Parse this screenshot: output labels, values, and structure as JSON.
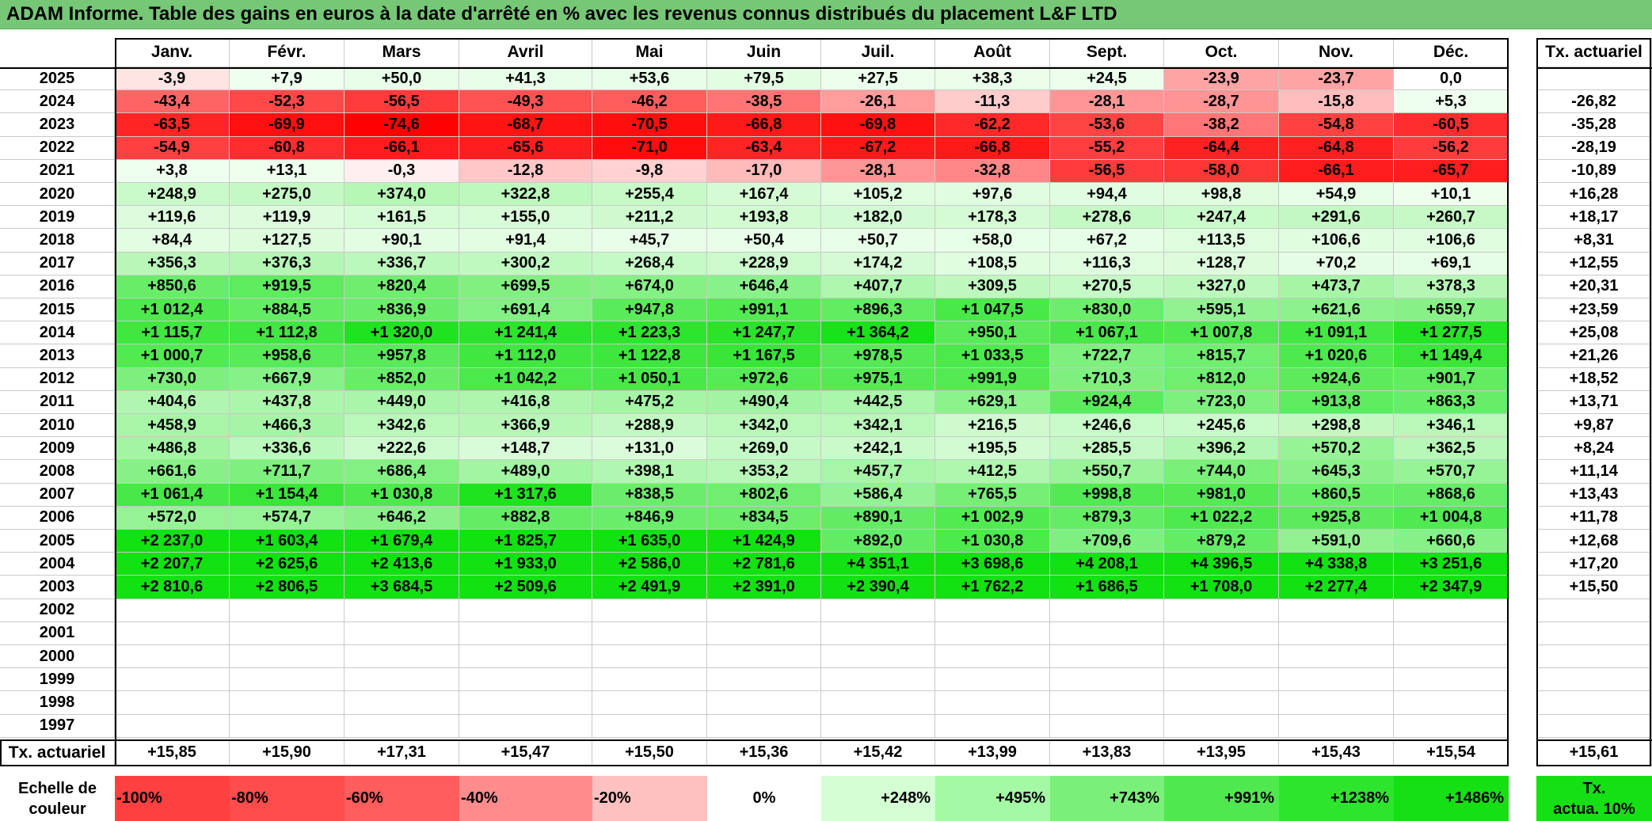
{
  "title": "ADAM Informe. Table des gains en euros à la date d'arrêté en % avec les revenus connus distribués du placement L&F LTD",
  "months": [
    "Janv.",
    "Févr.",
    "Mars",
    "Avril",
    "Mai",
    "Juin",
    "Juil.",
    "Août",
    "Sept.",
    "Oct.",
    "Nov.",
    "Déc."
  ],
  "annual_header": "Tx. actuariel",
  "rows": [
    {
      "year": "2025",
      "values": [
        "-3,9",
        "+7,9",
        "+50,0",
        "+41,3",
        "+53,6",
        "+79,5",
        "+27,5",
        "+38,3",
        "+24,5",
        "-23,9",
        "-23,7",
        "0,0"
      ],
      "annual": ""
    },
    {
      "year": "2024",
      "values": [
        "-43,4",
        "-52,3",
        "-56,5",
        "-49,3",
        "-46,2",
        "-38,5",
        "-26,1",
        "-11,3",
        "-28,1",
        "-28,7",
        "-15,8",
        "+5,3"
      ],
      "annual": "-26,82"
    },
    {
      "year": "2023",
      "values": [
        "-63,5",
        "-69,9",
        "-74,6",
        "-68,7",
        "-70,5",
        "-66,8",
        "-69,8",
        "-62,2",
        "-53,6",
        "-38,2",
        "-54,8",
        "-60,5"
      ],
      "annual": "-35,28"
    },
    {
      "year": "2022",
      "values": [
        "-54,9",
        "-60,8",
        "-66,1",
        "-65,6",
        "-71,0",
        "-63,4",
        "-67,2",
        "-66,8",
        "-55,2",
        "-64,4",
        "-64,8",
        "-56,2"
      ],
      "annual": "-28,19"
    },
    {
      "year": "2021",
      "values": [
        "+3,8",
        "+13,1",
        "-0,3",
        "-12,8",
        "-9,8",
        "-17,0",
        "-28,1",
        "-32,8",
        "-56,5",
        "-58,0",
        "-66,1",
        "-65,7"
      ],
      "annual": "-10,89"
    },
    {
      "year": "2020",
      "values": [
        "+248,9",
        "+275,0",
        "+374,0",
        "+322,8",
        "+255,4",
        "+167,4",
        "+105,2",
        "+97,6",
        "+94,4",
        "+98,8",
        "+54,9",
        "+10,1"
      ],
      "annual": "+16,28"
    },
    {
      "year": "2019",
      "values": [
        "+119,6",
        "+119,9",
        "+161,5",
        "+155,0",
        "+211,2",
        "+193,8",
        "+182,0",
        "+178,3",
        "+278,6",
        "+247,4",
        "+291,6",
        "+260,7"
      ],
      "annual": "+18,17"
    },
    {
      "year": "2018",
      "values": [
        "+84,4",
        "+127,5",
        "+90,1",
        "+91,4",
        "+45,7",
        "+50,4",
        "+50,7",
        "+58,0",
        "+67,2",
        "+113,5",
        "+106,6",
        "+106,6"
      ],
      "annual": "+8,31"
    },
    {
      "year": "2017",
      "values": [
        "+356,3",
        "+376,3",
        "+336,7",
        "+300,2",
        "+268,4",
        "+228,9",
        "+174,2",
        "+108,5",
        "+116,3",
        "+128,7",
        "+70,2",
        "+69,1"
      ],
      "annual": "+12,55"
    },
    {
      "year": "2016",
      "values": [
        "+850,6",
        "+919,5",
        "+820,4",
        "+699,5",
        "+674,0",
        "+646,4",
        "+407,7",
        "+309,5",
        "+270,5",
        "+327,0",
        "+473,7",
        "+378,3"
      ],
      "annual": "+20,31"
    },
    {
      "year": "2015",
      "values": [
        "+1 012,4",
        "+884,5",
        "+836,9",
        "+691,4",
        "+947,8",
        "+991,1",
        "+896,3",
        "+1 047,5",
        "+830,0",
        "+595,1",
        "+621,6",
        "+659,7"
      ],
      "annual": "+23,59"
    },
    {
      "year": "2014",
      "values": [
        "+1 115,7",
        "+1 112,8",
        "+1 320,0",
        "+1 241,4",
        "+1 223,3",
        "+1 247,7",
        "+1 364,2",
        "+950,1",
        "+1 067,1",
        "+1 007,8",
        "+1 091,1",
        "+1 277,5"
      ],
      "annual": "+25,08"
    },
    {
      "year": "2013",
      "values": [
        "+1 000,7",
        "+958,6",
        "+957,8",
        "+1 112,0",
        "+1 122,8",
        "+1 167,5",
        "+978,5",
        "+1 033,5",
        "+722,7",
        "+815,7",
        "+1 020,6",
        "+1 149,4"
      ],
      "annual": "+21,26"
    },
    {
      "year": "2012",
      "values": [
        "+730,0",
        "+667,9",
        "+852,0",
        "+1 042,2",
        "+1 050,1",
        "+972,6",
        "+975,1",
        "+991,9",
        "+710,3",
        "+812,0",
        "+924,6",
        "+901,7"
      ],
      "annual": "+18,52"
    },
    {
      "year": "2011",
      "values": [
        "+404,6",
        "+437,8",
        "+449,0",
        "+416,8",
        "+475,2",
        "+490,4",
        "+442,5",
        "+629,1",
        "+924,4",
        "+723,0",
        "+913,8",
        "+863,3"
      ],
      "annual": "+13,71"
    },
    {
      "year": "2010",
      "values": [
        "+458,9",
        "+466,3",
        "+342,6",
        "+366,9",
        "+288,9",
        "+342,0",
        "+342,1",
        "+216,5",
        "+246,6",
        "+245,6",
        "+298,8",
        "+346,1"
      ],
      "annual": "+9,87"
    },
    {
      "year": "2009",
      "values": [
        "+486,8",
        "+336,6",
        "+222,6",
        "+148,7",
        "+131,0",
        "+269,0",
        "+242,1",
        "+195,5",
        "+285,5",
        "+396,2",
        "+570,2",
        "+362,5"
      ],
      "annual": "+8,24"
    },
    {
      "year": "2008",
      "values": [
        "+661,6",
        "+711,7",
        "+686,4",
        "+489,0",
        "+398,1",
        "+353,2",
        "+457,7",
        "+412,5",
        "+550,7",
        "+744,0",
        "+645,3",
        "+570,7"
      ],
      "annual": "+11,14"
    },
    {
      "year": "2007",
      "values": [
        "+1 061,4",
        "+1 154,4",
        "+1 030,8",
        "+1 317,6",
        "+838,5",
        "+802,6",
        "+586,4",
        "+765,5",
        "+998,8",
        "+981,0",
        "+860,5",
        "+868,6"
      ],
      "annual": "+13,43"
    },
    {
      "year": "2006",
      "values": [
        "+572,0",
        "+574,7",
        "+646,2",
        "+882,8",
        "+846,9",
        "+834,5",
        "+890,1",
        "+1 002,9",
        "+879,3",
        "+1 022,2",
        "+925,8",
        "+1 004,8"
      ],
      "annual": "+11,78"
    },
    {
      "year": "2005",
      "values": [
        "+2 237,0",
        "+1 603,4",
        "+1 679,4",
        "+1 825,7",
        "+1 635,0",
        "+1 424,9",
        "+892,0",
        "+1 030,8",
        "+709,6",
        "+879,2",
        "+591,0",
        "+660,6"
      ],
      "annual": "+12,68"
    },
    {
      "year": "2004",
      "values": [
        "+2 207,7",
        "+2 625,6",
        "+2 413,6",
        "+1 933,0",
        "+2 586,0",
        "+2 781,6",
        "+4 351,1",
        "+3 698,6",
        "+4 208,1",
        "+4 396,5",
        "+4 338,8",
        "+3 251,6"
      ],
      "annual": "+17,20"
    },
    {
      "year": "2003",
      "values": [
        "+2 810,6",
        "+2 806,5",
        "+3 684,5",
        "+2 509,6",
        "+2 491,9",
        "+2 391,0",
        "+2 390,4",
        "+1 762,2",
        "+1 686,5",
        "+1 708,0",
        "+2 277,4",
        "+2 347,9"
      ],
      "annual": "+15,50"
    },
    {
      "year": "2002",
      "values": [
        "",
        "",
        "",
        "",
        "",
        "",
        "",
        "",
        "",
        "",
        "",
        ""
      ],
      "annual": ""
    },
    {
      "year": "2001",
      "values": [
        "",
        "",
        "",
        "",
        "",
        "",
        "",
        "",
        "",
        "",
        "",
        ""
      ],
      "annual": ""
    },
    {
      "year": "2000",
      "values": [
        "",
        "",
        "",
        "",
        "",
        "",
        "",
        "",
        "",
        "",
        "",
        ""
      ],
      "annual": ""
    },
    {
      "year": "1999",
      "values": [
        "",
        "",
        "",
        "",
        "",
        "",
        "",
        "",
        "",
        "",
        "",
        ""
      ],
      "annual": ""
    },
    {
      "year": "1998",
      "values": [
        "",
        "",
        "",
        "",
        "",
        "",
        "",
        "",
        "",
        "",
        "",
        ""
      ],
      "annual": ""
    },
    {
      "year": "1997",
      "values": [
        "",
        "",
        "",
        "",
        "",
        "",
        "",
        "",
        "",
        "",
        "",
        ""
      ],
      "annual": ""
    }
  ],
  "footer": {
    "label": "Tx. actuariel",
    "values": [
      "+15,85",
      "+15,90",
      "+17,31",
      "+15,47",
      "+15,50",
      "+15,36",
      "+15,42",
      "+13,99",
      "+13,83",
      "+13,95",
      "+15,43",
      "+15,54"
    ],
    "annual": "+15,61"
  },
  "scale": {
    "label_line1": "Echelle de",
    "label_line2": "couleur",
    "items": [
      {
        "label": "-100%",
        "color": "#ff4040"
      },
      {
        "label": "-80%",
        "color": "#ff4d4d"
      },
      {
        "label": "-60%",
        "color": "#ff5c5c"
      },
      {
        "label": "-40%",
        "color": "#ff8c8c"
      },
      {
        "label": "-20%",
        "color": "#ffc0c0"
      },
      {
        "label": "0%",
        "color": "#ffffff"
      },
      {
        "label": "+248%",
        "color": "#d4fed4"
      },
      {
        "label": "+495%",
        "color": "#a4f9a4"
      },
      {
        "label": "+743%",
        "color": "#7af07a"
      },
      {
        "label": "+991%",
        "color": "#4fe94f"
      },
      {
        "label": "+1238%",
        "color": "#2ee52e"
      },
      {
        "label": "+1486%",
        "color": "#14e014"
      }
    ],
    "annual_line1": "Tx.",
    "annual_line2": "actua. 10%",
    "annual_color": "#14e014"
  }
}
